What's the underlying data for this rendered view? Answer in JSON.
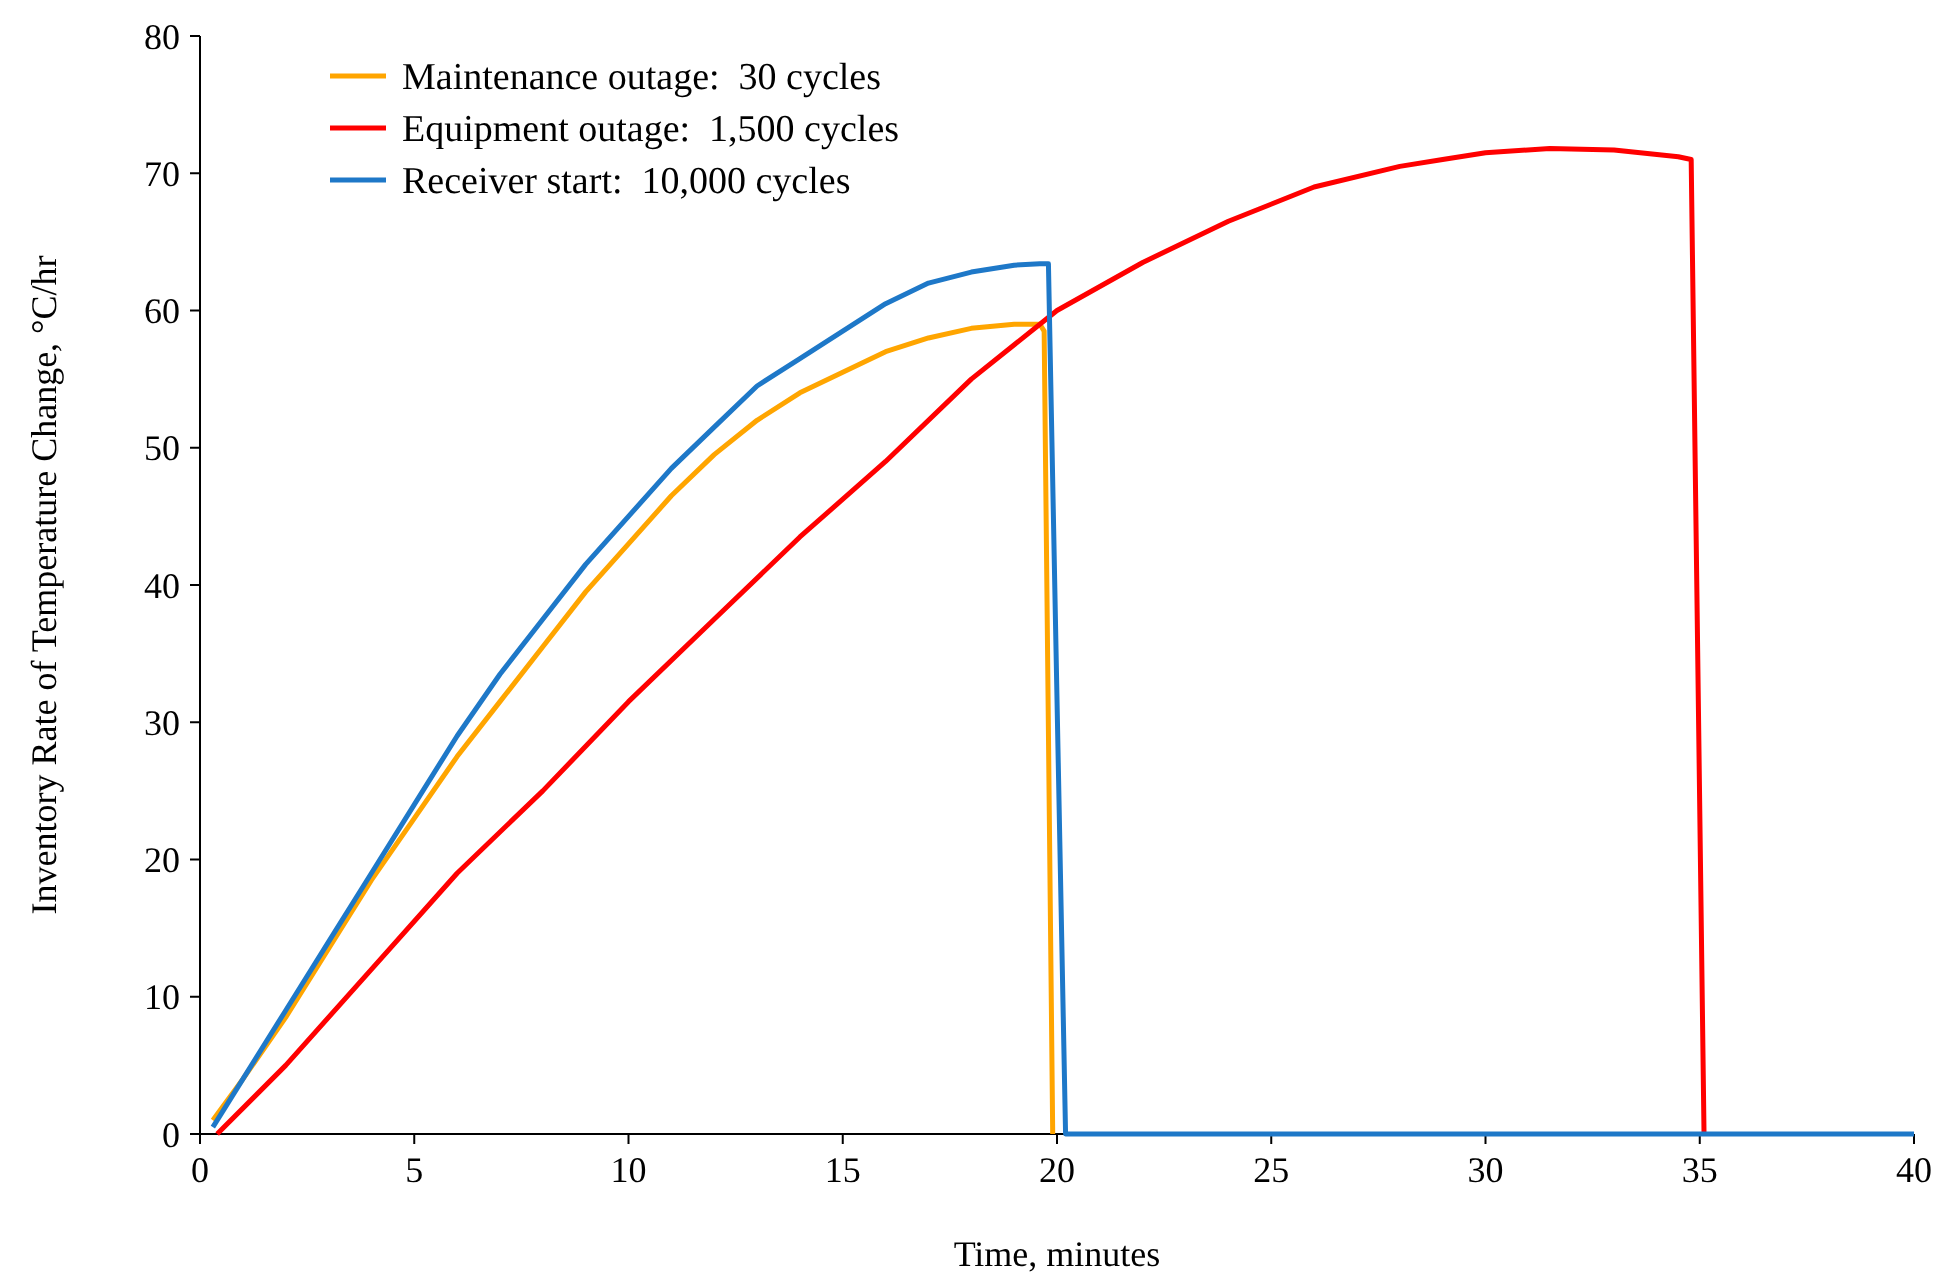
{
  "chart_data": {
    "type": "line",
    "xlabel": "Time,  minutes",
    "ylabel": "Inventory Rate of Temperature Change,  °C/hr",
    "xlim": [
      0,
      40
    ],
    "ylim": [
      0,
      80
    ],
    "xticks": [
      0,
      5,
      10,
      15,
      20,
      25,
      30,
      35,
      40
    ],
    "yticks": [
      0,
      10,
      20,
      30,
      40,
      50,
      60,
      70,
      80
    ],
    "grid": false,
    "legend": "top left",
    "marker": "none",
    "line_style": "solid",
    "series": [
      {
        "name": "Maintenance outage:  30 cycles",
        "color": "#ffa500",
        "x": [
          0.3,
          1,
          2,
          3,
          4,
          5,
          6,
          7,
          8,
          9,
          10,
          11,
          12,
          13,
          14,
          15,
          16,
          17,
          18,
          19,
          19.6,
          19.7,
          19.9
        ],
        "values": [
          1,
          4,
          8.5,
          13.5,
          18.5,
          23,
          27.5,
          31.5,
          35.5,
          39.5,
          43,
          46.5,
          49.5,
          52,
          54,
          55.5,
          57,
          58,
          58.7,
          59,
          59,
          58.5,
          0
        ]
      },
      {
        "name": "Equipment outage:  1,500 cycles",
        "color": "#ff0000",
        "x": [
          0.4,
          2,
          4,
          6,
          8,
          10,
          12,
          14,
          16,
          18,
          20,
          22,
          24,
          26,
          28,
          29,
          30,
          31.5,
          33,
          34.5,
          34.8,
          35.1
        ],
        "values": [
          0,
          5,
          12,
          19,
          25,
          31.5,
          37.5,
          43.5,
          49,
          55,
          60,
          63.5,
          66.5,
          69,
          70.5,
          71,
          71.5,
          71.8,
          71.7,
          71.2,
          71,
          0
        ]
      },
      {
        "name": "Receiver start:  10,000 cycles",
        "color": "#1e78c8",
        "x": [
          0.3,
          1,
          2,
          3,
          4,
          5,
          6,
          7,
          8,
          9,
          10,
          11,
          12,
          13,
          14,
          15,
          16,
          17,
          18,
          19,
          19.6,
          19.8,
          20.2,
          40
        ],
        "values": [
          0.5,
          4,
          9,
          14,
          19,
          24,
          29,
          33.5,
          37.5,
          41.5,
          45,
          48.5,
          51.5,
          54.5,
          56.5,
          58.5,
          60.5,
          62,
          62.8,
          63.3,
          63.4,
          63.4,
          0,
          0
        ]
      }
    ]
  }
}
